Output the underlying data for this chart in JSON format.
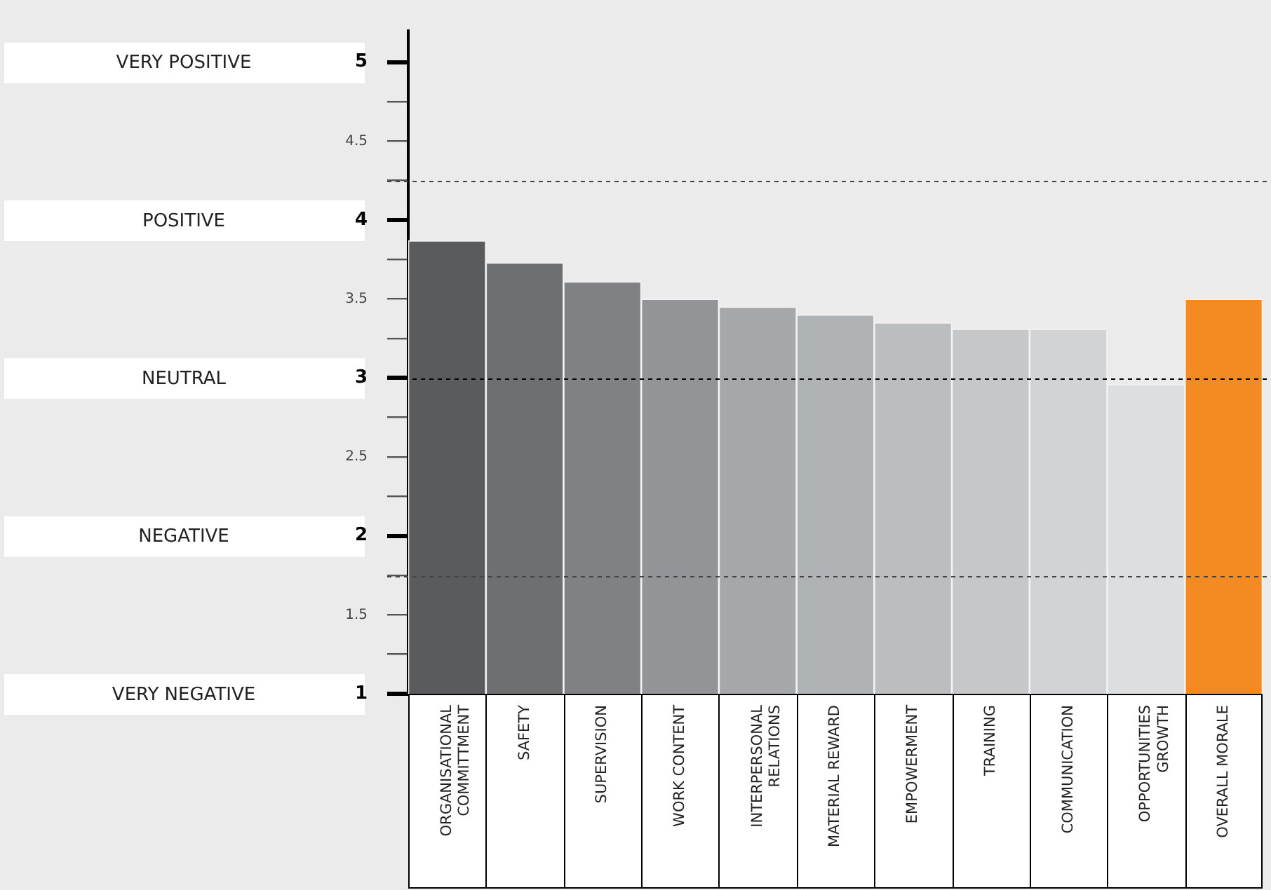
{
  "chart_data": {
    "type": "bar",
    "categories": [
      "ORGANISATIONAL\nCOMMITTMENT",
      "SAFETY",
      "SUPERVISION",
      "WORK CONTENT",
      "INTERPERSONAL\nRELATIONS",
      "MATERIAL REWARD",
      "EMPOWERMENT",
      "TRAINING",
      "COMMUNICATION",
      "OPPORTUNITIES\nGROWTH",
      "OVERALL MORALE"
    ],
    "values": [
      3.87,
      3.73,
      3.61,
      3.5,
      3.45,
      3.4,
      3.35,
      3.31,
      3.31,
      2.96,
      3.5
    ],
    "colors": [
      "#5a5b5d",
      "#6e6f71",
      "#808183",
      "#939497",
      "#a6a7a9",
      "#b0b3b5",
      "#bcbdbf",
      "#c6c7c9",
      "#d2d3d5",
      "#dddedf",
      "#f38a22"
    ],
    "ylim": [
      1,
      5.2
    ],
    "yticks": [
      1,
      {
        "value": 1.25,
        "label": null
      },
      1.5,
      {
        "value": 1.75,
        "label": null
      },
      2,
      {
        "value": 2.25,
        "label": null
      },
      2.5,
      {
        "value": 2.75,
        "label": null
      },
      3,
      {
        "value": 3.25,
        "label": null
      },
      3.5,
      {
        "value": 3.75,
        "label": null
      },
      4,
      {
        "value": 4.25,
        "label": null
      },
      4.5,
      {
        "value": 4.75,
        "label": null
      },
      5
    ],
    "ref_lines": [
      {
        "axis": "y",
        "value": 4.25,
        "color": "#444444",
        "line_style": "dashed"
      },
      {
        "axis": "y",
        "value": 3,
        "color": "#000000",
        "line_style": "dashed"
      },
      {
        "axis": "y",
        "value": 1.75,
        "color": "#444444",
        "line_style": "dashed"
      }
    ],
    "annotations": [
      "VERY POSITIVE",
      "POSITIVE",
      "NEUTRAL",
      "NEGATIVE",
      "VERY NEGATIVE"
    ],
    "grid": false,
    "legend": false
  }
}
